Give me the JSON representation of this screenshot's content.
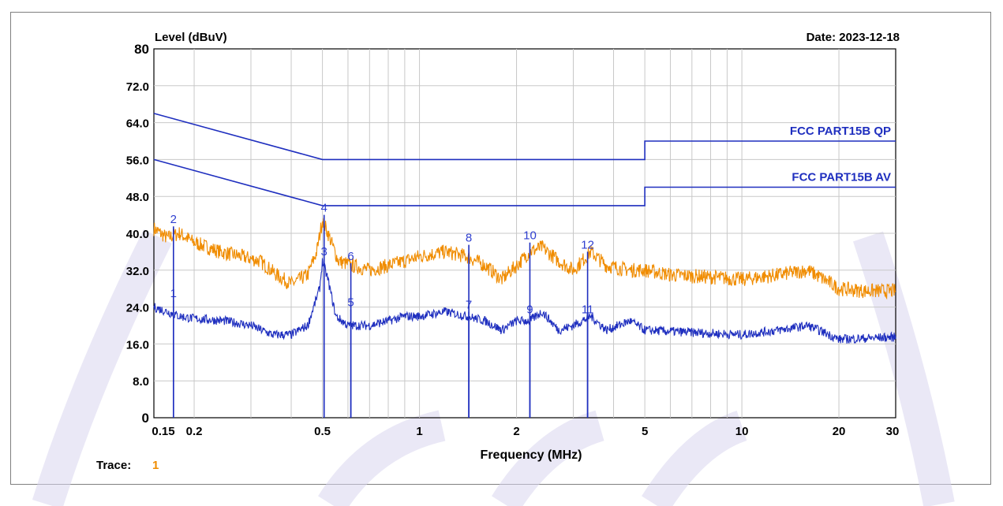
{
  "header": {
    "ylabel": "Level (dBuV)",
    "date": "Date: 2023-12-18"
  },
  "footer": {
    "trace_label": "Trace:",
    "trace_value": "1"
  },
  "chart_data": {
    "type": "line",
    "xlabel": "Frequency (MHz)",
    "ylabel": "Level (dBuV)",
    "x_scale": "log",
    "xlim": [
      0.15,
      30
    ],
    "ylim": [
      0,
      80
    ],
    "grid": true,
    "y_ticks": [
      "0",
      "8.0",
      "16.0",
      "24.0",
      "32.0",
      "40.0",
      "48.0",
      "56.0",
      "64.0",
      "72.0",
      "80"
    ],
    "x_ticks": [
      "0.15",
      "0.2",
      "0.5",
      "1",
      "2",
      "5",
      "10",
      "20",
      "30"
    ],
    "limit_lines": [
      {
        "name": "FCC PART15B QP",
        "color": "#1f2fbf",
        "points": [
          [
            0.15,
            66
          ],
          [
            0.5,
            56
          ],
          [
            5,
            56
          ],
          [
            5,
            60
          ],
          [
            30,
            60
          ]
        ]
      },
      {
        "name": "FCC PART15B AV",
        "color": "#1f2fbf",
        "points": [
          [
            0.15,
            56
          ],
          [
            0.5,
            46
          ],
          [
            5,
            46
          ],
          [
            5,
            50
          ],
          [
            30,
            50
          ]
        ]
      }
    ],
    "series": [
      {
        "color": "#f08c00",
        "points": [
          [
            0.15,
            41
          ],
          [
            0.165,
            39
          ],
          [
            0.18,
            40
          ],
          [
            0.2,
            38
          ],
          [
            0.24,
            36
          ],
          [
            0.28,
            35
          ],
          [
            0.32,
            34
          ],
          [
            0.36,
            31
          ],
          [
            0.4,
            29
          ],
          [
            0.45,
            31
          ],
          [
            0.48,
            36
          ],
          [
            0.5,
            43
          ],
          [
            0.52,
            40
          ],
          [
            0.56,
            34
          ],
          [
            0.62,
            33
          ],
          [
            0.7,
            32
          ],
          [
            0.8,
            33
          ],
          [
            0.9,
            34
          ],
          [
            1.0,
            35
          ],
          [
            1.2,
            36
          ],
          [
            1.4,
            35
          ],
          [
            1.6,
            33
          ],
          [
            1.8,
            30
          ],
          [
            2.0,
            33
          ],
          [
            2.2,
            36
          ],
          [
            2.4,
            37
          ],
          [
            2.7,
            34
          ],
          [
            3.0,
            32
          ],
          [
            3.4,
            36
          ],
          [
            3.8,
            33
          ],
          [
            4.5,
            32
          ],
          [
            5.0,
            32
          ],
          [
            6,
            31
          ],
          [
            8,
            30.5
          ],
          [
            10,
            30
          ],
          [
            13,
            31
          ],
          [
            16,
            32
          ],
          [
            18,
            30
          ],
          [
            20,
            28
          ],
          [
            24,
            27.5
          ],
          [
            30,
            27.5
          ]
        ]
      },
      {
        "color": "#1f2fbf",
        "points": [
          [
            0.15,
            24
          ],
          [
            0.165,
            23
          ],
          [
            0.18,
            22
          ],
          [
            0.2,
            21.5
          ],
          [
            0.25,
            21
          ],
          [
            0.3,
            20
          ],
          [
            0.35,
            18
          ],
          [
            0.4,
            18
          ],
          [
            0.45,
            20
          ],
          [
            0.49,
            28
          ],
          [
            0.5,
            34
          ],
          [
            0.52,
            30
          ],
          [
            0.55,
            22
          ],
          [
            0.6,
            20
          ],
          [
            0.7,
            20
          ],
          [
            0.8,
            21
          ],
          [
            0.9,
            22
          ],
          [
            1.0,
            22
          ],
          [
            1.2,
            23
          ],
          [
            1.4,
            22
          ],
          [
            1.6,
            21
          ],
          [
            1.8,
            19
          ],
          [
            2.0,
            21
          ],
          [
            2.2,
            21
          ],
          [
            2.4,
            23
          ],
          [
            2.7,
            19
          ],
          [
            3.0,
            20
          ],
          [
            3.4,
            22
          ],
          [
            3.8,
            19
          ],
          [
            4.5,
            21
          ],
          [
            5.0,
            19
          ],
          [
            7,
            18.5
          ],
          [
            10,
            18
          ],
          [
            13,
            19
          ],
          [
            16,
            20
          ],
          [
            18,
            18.5
          ],
          [
            20,
            17
          ],
          [
            30,
            17.5
          ]
        ]
      }
    ],
    "markers": [
      {
        "id": "1",
        "freq": 0.1725,
        "level": 25.5
      },
      {
        "id": "2",
        "freq": 0.1725,
        "level": 41.5
      },
      {
        "id": "3",
        "freq": 0.506,
        "level": 34.5
      },
      {
        "id": "4",
        "freq": 0.506,
        "level": 44
      },
      {
        "id": "5",
        "freq": 0.6125,
        "level": 23.5
      },
      {
        "id": "6",
        "freq": 0.6125,
        "level": 33.5
      },
      {
        "id": "7",
        "freq": 1.4225,
        "level": 23
      },
      {
        "id": "8",
        "freq": 1.4225,
        "level": 37.5
      },
      {
        "id": "9",
        "freq": 2.2,
        "level": 22
      },
      {
        "id": "10",
        "freq": 2.2,
        "level": 38
      },
      {
        "id": "11",
        "freq": 3.3225,
        "level": 22
      },
      {
        "id": "12",
        "freq": 3.3225,
        "level": 36
      }
    ]
  }
}
